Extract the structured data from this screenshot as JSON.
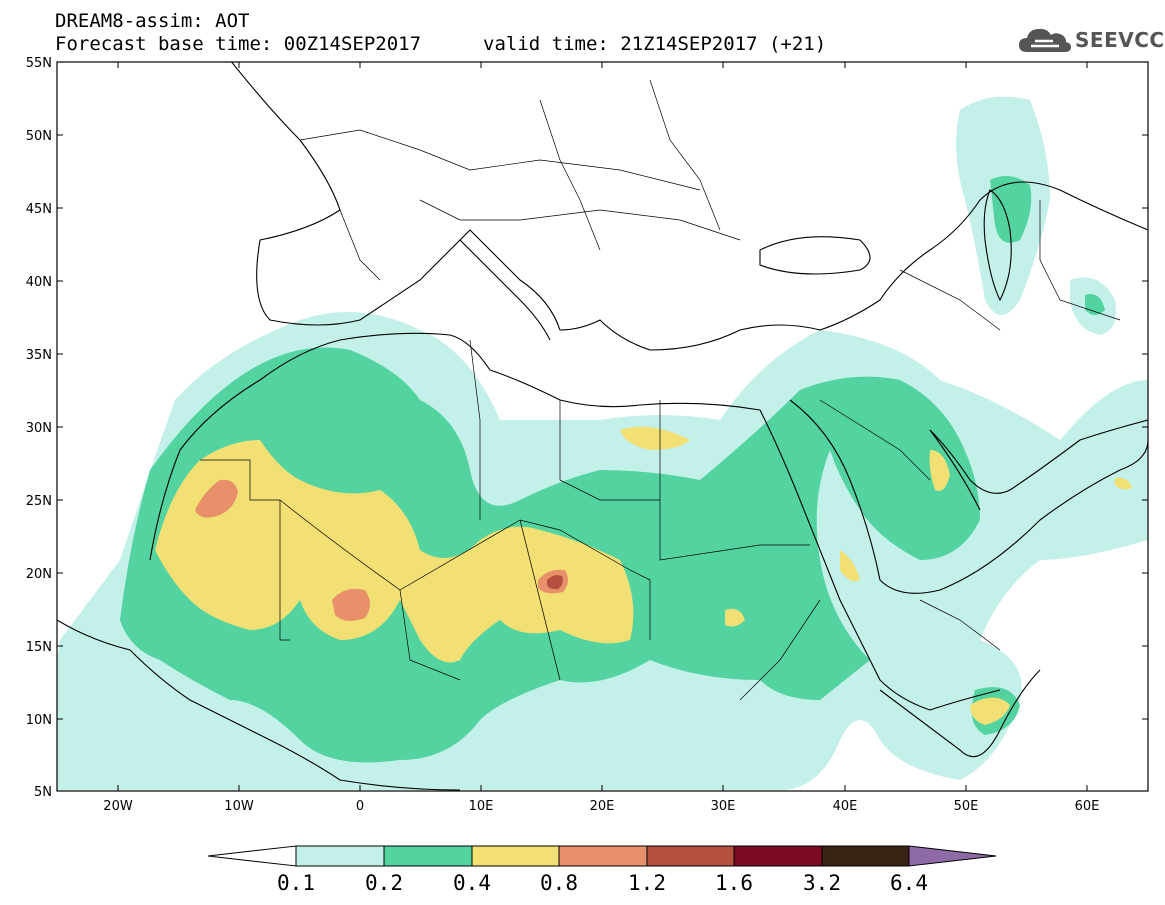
{
  "header": {
    "title_line1": "DREAM8-assim: AOT",
    "title_line2": "Forecast base time: 00Z14SEP2017",
    "valid_time": "valid time: 21Z14SEP2017 (+21)"
  },
  "logo": {
    "text": "SEEVCCC",
    "icon": "cloud-icon"
  },
  "map": {
    "lon_range": [
      -25,
      65
    ],
    "lat_range": [
      5,
      55
    ],
    "lat_ticks": [
      "55N",
      "50N",
      "45N",
      "40N",
      "35N",
      "30N",
      "25N",
      "20N",
      "15N",
      "10N",
      "5N"
    ],
    "lon_ticks": [
      "20W",
      "10W",
      "0",
      "10E",
      "20E",
      "30E",
      "40E",
      "50E",
      "60E"
    ]
  },
  "legend": {
    "thresholds": [
      "0.1",
      "0.2",
      "0.4",
      "0.8",
      "1.2",
      "1.6",
      "3.2",
      "6.4"
    ],
    "colors": [
      "#c4f0ea",
      "#52d3a0",
      "#f2e074",
      "#e8906a",
      "#b24f3f",
      "#7c0a24",
      "#3a2416",
      "#8e6aa6"
    ],
    "under_color": "#ffffff"
  }
}
